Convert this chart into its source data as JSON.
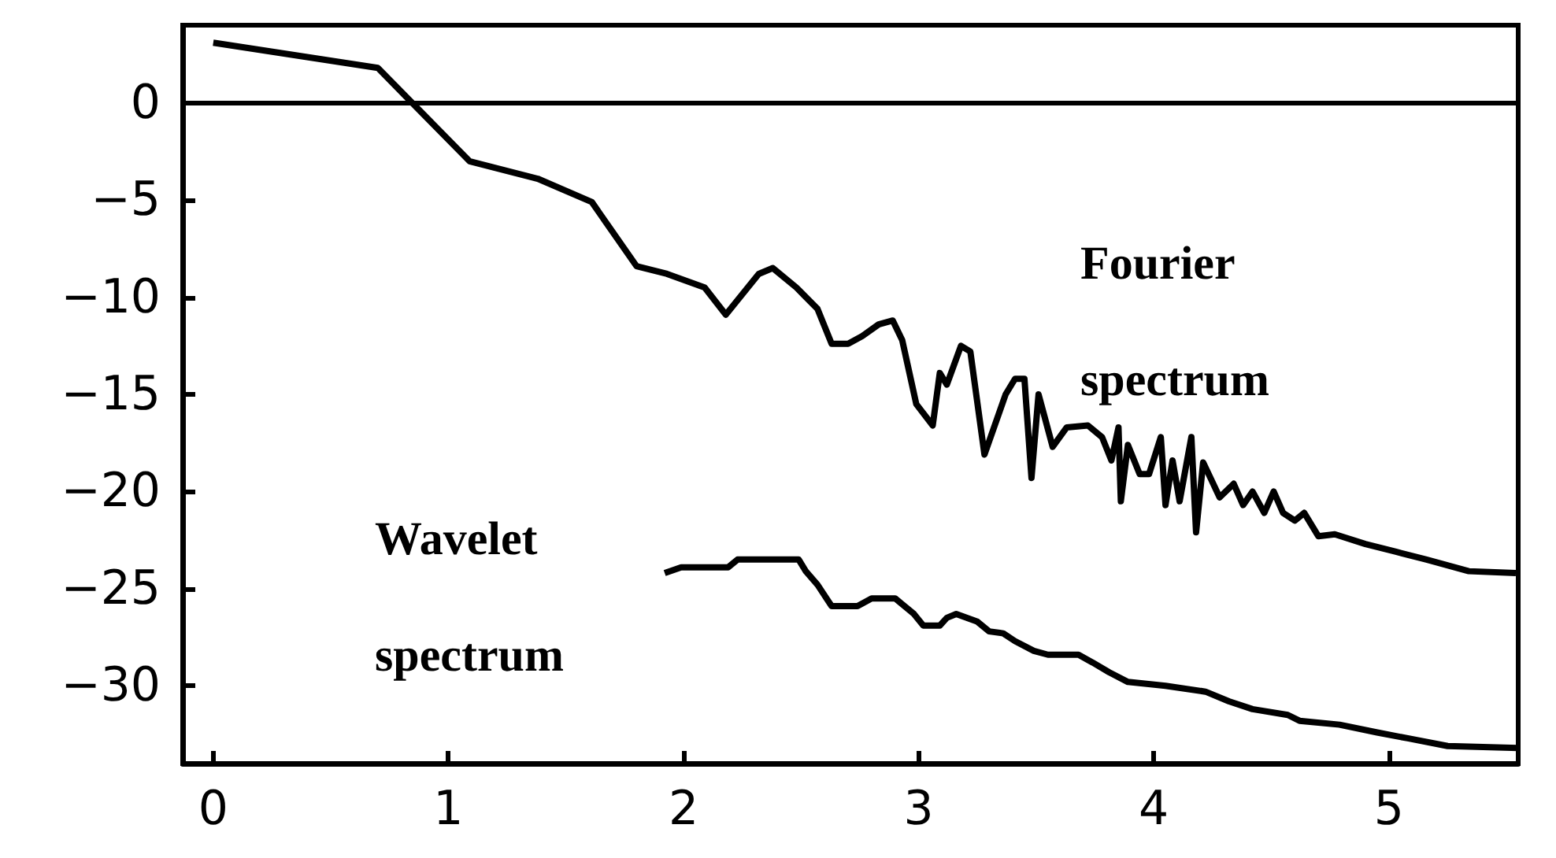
{
  "chart_data": {
    "type": "line",
    "xlim": [
      -0.13,
      5.55
    ],
    "ylim": [
      -34,
      4
    ],
    "xticks": [
      0,
      1,
      2,
      3,
      4,
      5
    ],
    "yticks": [
      {
        "value": -30,
        "label": "−30"
      },
      {
        "value": -25,
        "label": "−25"
      },
      {
        "value": -20,
        "label": "−20"
      },
      {
        "value": -15,
        "label": "−15"
      },
      {
        "value": -10,
        "label": "−10"
      },
      {
        "value": -5,
        "label": "−5"
      },
      0
    ],
    "grid": false,
    "marker": "none",
    "line_style": "solid",
    "ref_lines": [
      {
        "axis": "y",
        "value": 0,
        "color": "#000000"
      }
    ],
    "annotations": [
      "Fourier spectrum",
      "Wavelet spectrum"
    ],
    "series": [
      {
        "color": "#000000",
        "x": [
          0,
          0.7,
          1.09,
          1.38,
          1.61,
          1.8,
          1.93,
          2.09,
          2.18,
          2.32,
          2.38,
          2.48,
          2.57,
          2.63,
          2.7,
          2.76,
          2.83,
          2.89,
          2.93,
          2.99,
          3.06,
          3.09,
          3.12,
          3.18,
          3.22,
          3.28,
          3.37,
          3.41,
          3.45,
          3.48,
          3.51,
          3.57,
          3.63,
          3.72,
          3.78,
          3.82,
          3.85,
          3.86,
          3.89,
          3.94,
          3.98,
          4.03,
          4.05,
          4.08,
          4.11,
          4.16,
          4.18,
          4.21,
          4.28,
          4.34,
          4.38,
          4.42,
          4.47,
          4.51,
          4.55,
          4.6,
          4.64,
          4.7,
          4.77,
          4.9,
          5.03,
          5.16,
          5.34,
          5.54
        ],
        "values": [
          3.1,
          1.8,
          -3.0,
          -3.9,
          -5.1,
          -8.4,
          -8.8,
          -9.5,
          -10.9,
          -8.8,
          -8.5,
          -9.5,
          -10.6,
          -12.4,
          -12.4,
          -12.0,
          -11.4,
          -11.2,
          -12.2,
          -15.5,
          -16.6,
          -13.9,
          -14.5,
          -12.5,
          -12.8,
          -18.1,
          -15.0,
          -14.2,
          -14.2,
          -19.3,
          -15.0,
          -17.7,
          -16.7,
          -16.6,
          -17.2,
          -18.4,
          -16.7,
          -20.5,
          -17.6,
          -19.1,
          -19.1,
          -17.2,
          -20.7,
          -18.4,
          -20.5,
          -17.2,
          -22.1,
          -18.5,
          -20.3,
          -19.6,
          -20.7,
          -20.0,
          -21.1,
          -20.0,
          -21.1,
          -21.5,
          -21.1,
          -22.3,
          -22.2,
          -22.7,
          -23.1,
          -23.5,
          -24.1,
          -24.2
        ]
      },
      {
        "color": "#000000",
        "x": [
          1.92,
          1.99,
          2.19,
          2.23,
          2.49,
          2.52,
          2.57,
          2.63,
          2.74,
          2.8,
          2.9,
          2.98,
          3.02,
          3.09,
          3.12,
          3.16,
          3.25,
          3.3,
          3.36,
          3.41,
          3.49,
          3.55,
          3.68,
          3.74,
          3.81,
          3.89,
          4.05,
          4.22,
          4.32,
          4.42,
          4.57,
          4.62,
          4.79,
          4.95,
          5.08,
          5.25,
          5.55
        ],
        "values": [
          -24.2,
          -23.9,
          -23.9,
          -23.5,
          -23.5,
          -24.1,
          -24.8,
          -25.9,
          -25.9,
          -25.5,
          -25.5,
          -26.3,
          -26.9,
          -26.9,
          -26.5,
          -26.3,
          -26.7,
          -27.2,
          -27.3,
          -27.7,
          -28.2,
          -28.4,
          -28.4,
          -28.8,
          -29.3,
          -29.8,
          -30.0,
          -30.3,
          -30.8,
          -31.2,
          -31.5,
          -31.8,
          -32.0,
          -32.4,
          -32.7,
          -33.1,
          -33.2
        ]
      }
    ]
  }
}
